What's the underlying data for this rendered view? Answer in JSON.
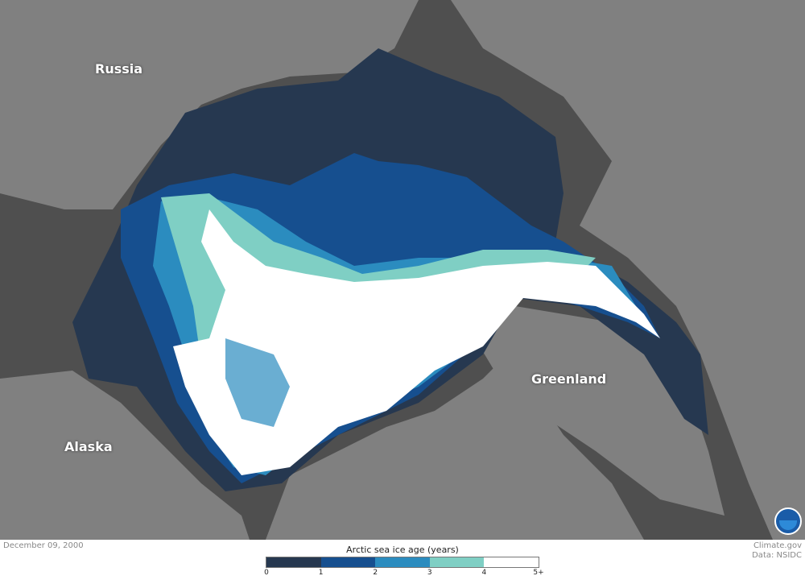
{
  "labels": {
    "russia": "Russia",
    "alaska": "Alaska",
    "greenland": "Greenland"
  },
  "date": "December 09, 2000",
  "credit": {
    "line1": "Climate.gov",
    "line2": "Data: NSIDC"
  },
  "legend": {
    "title": "Arctic sea ice age (years)",
    "ticks": [
      "0",
      "1",
      "2",
      "3",
      "4",
      "5+"
    ],
    "colors": [
      "#263850",
      "#164f8f",
      "#2b8cbf",
      "#7fcfc4",
      "#ffffff"
    ]
  },
  "colors": {
    "land": "#808080",
    "open_water": "#4f4f4f"
  }
}
